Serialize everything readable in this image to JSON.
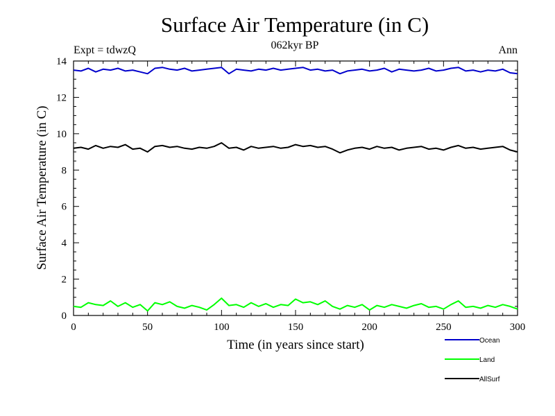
{
  "chart_data": {
    "type": "line",
    "title": "Surface Air Temperature (in C)",
    "subtitle": "062kyr BP",
    "experiment_label": "Expt = tdwzQ",
    "season_label": "Ann",
    "xlabel": "Time (in years since start)",
    "ylabel": "Surface Air Temperature (in C)",
    "xlim": [
      0,
      300
    ],
    "ylim": [
      0,
      14
    ],
    "x_ticks": [
      0,
      50,
      100,
      150,
      200,
      250,
      300
    ],
    "y_ticks": [
      0,
      2,
      4,
      6,
      8,
      10,
      12,
      14
    ],
    "grid": false,
    "legend_position": "bottom-right, below plot",
    "series": [
      {
        "name": "Ocean",
        "color": "#0000cc",
        "x": [
          0,
          5,
          10,
          15,
          20,
          25,
          30,
          35,
          40,
          45,
          50,
          55,
          60,
          65,
          70,
          75,
          80,
          85,
          90,
          95,
          100,
          105,
          110,
          115,
          120,
          125,
          130,
          135,
          140,
          145,
          150,
          155,
          160,
          165,
          170,
          175,
          180,
          185,
          190,
          195,
          200,
          205,
          210,
          215,
          220,
          225,
          230,
          235,
          240,
          245,
          250,
          255,
          260,
          265,
          270,
          275,
          280,
          285,
          290,
          295,
          300
        ],
        "values": [
          13.5,
          13.45,
          13.6,
          13.4,
          13.55,
          13.5,
          13.6,
          13.45,
          13.5,
          13.4,
          13.3,
          13.6,
          13.65,
          13.55,
          13.5,
          13.6,
          13.45,
          13.5,
          13.55,
          13.6,
          13.65,
          13.3,
          13.55,
          13.5,
          13.45,
          13.55,
          13.5,
          13.6,
          13.5,
          13.55,
          13.6,
          13.65,
          13.5,
          13.55,
          13.45,
          13.5,
          13.3,
          13.45,
          13.5,
          13.55,
          13.45,
          13.5,
          13.6,
          13.4,
          13.55,
          13.5,
          13.45,
          13.5,
          13.6,
          13.45,
          13.5,
          13.6,
          13.65,
          13.45,
          13.5,
          13.4,
          13.5,
          13.45,
          13.55,
          13.35,
          13.3
        ]
      },
      {
        "name": "Land",
        "color": "#00ff00",
        "x": [
          0,
          5,
          10,
          15,
          20,
          25,
          30,
          35,
          40,
          45,
          50,
          55,
          60,
          65,
          70,
          75,
          80,
          85,
          90,
          95,
          100,
          105,
          110,
          115,
          120,
          125,
          130,
          135,
          140,
          145,
          150,
          155,
          160,
          165,
          170,
          175,
          180,
          185,
          190,
          195,
          200,
          205,
          210,
          215,
          220,
          225,
          230,
          235,
          240,
          245,
          250,
          255,
          260,
          265,
          270,
          275,
          280,
          285,
          290,
          295,
          300
        ],
        "values": [
          0.5,
          0.45,
          0.7,
          0.6,
          0.55,
          0.8,
          0.5,
          0.7,
          0.45,
          0.6,
          0.25,
          0.7,
          0.6,
          0.75,
          0.5,
          0.4,
          0.55,
          0.45,
          0.3,
          0.6,
          0.95,
          0.55,
          0.6,
          0.45,
          0.7,
          0.5,
          0.65,
          0.45,
          0.6,
          0.55,
          0.9,
          0.7,
          0.75,
          0.6,
          0.8,
          0.5,
          0.35,
          0.55,
          0.45,
          0.6,
          0.3,
          0.55,
          0.45,
          0.6,
          0.5,
          0.4,
          0.55,
          0.65,
          0.45,
          0.5,
          0.35,
          0.6,
          0.8,
          0.45,
          0.5,
          0.4,
          0.55,
          0.45,
          0.6,
          0.5,
          0.35
        ]
      },
      {
        "name": "AllSurf",
        "color": "#000000",
        "x": [
          0,
          5,
          10,
          15,
          20,
          25,
          30,
          35,
          40,
          45,
          50,
          55,
          60,
          65,
          70,
          75,
          80,
          85,
          90,
          95,
          100,
          105,
          110,
          115,
          120,
          125,
          130,
          135,
          140,
          145,
          150,
          155,
          160,
          165,
          170,
          175,
          180,
          185,
          190,
          195,
          200,
          205,
          210,
          215,
          220,
          225,
          230,
          235,
          240,
          245,
          250,
          255,
          260,
          265,
          270,
          275,
          280,
          285,
          290,
          295,
          300
        ],
        "values": [
          9.2,
          9.25,
          9.15,
          9.35,
          9.2,
          9.3,
          9.25,
          9.4,
          9.15,
          9.2,
          9.0,
          9.3,
          9.35,
          9.25,
          9.3,
          9.2,
          9.15,
          9.25,
          9.2,
          9.3,
          9.5,
          9.2,
          9.25,
          9.1,
          9.3,
          9.2,
          9.25,
          9.3,
          9.2,
          9.25,
          9.4,
          9.3,
          9.35,
          9.25,
          9.3,
          9.15,
          8.95,
          9.1,
          9.2,
          9.25,
          9.15,
          9.3,
          9.2,
          9.25,
          9.1,
          9.2,
          9.25,
          9.3,
          9.15,
          9.2,
          9.1,
          9.25,
          9.35,
          9.2,
          9.25,
          9.15,
          9.2,
          9.25,
          9.3,
          9.1,
          9.0
        ]
      }
    ]
  }
}
